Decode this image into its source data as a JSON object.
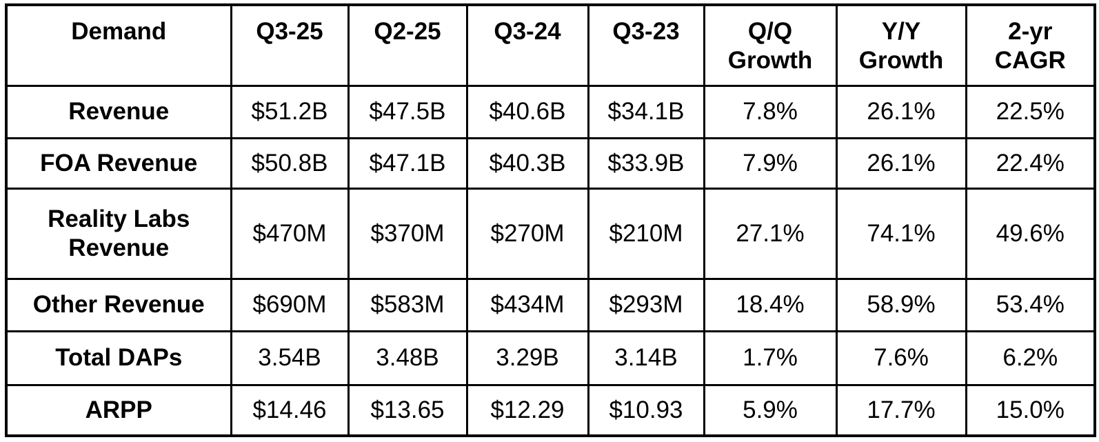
{
  "colors": {
    "border": "#000000",
    "text": "#000000",
    "background": "#ffffff"
  },
  "chart_data": {
    "type": "table",
    "columns": [
      "Demand",
      "Q3-25",
      "Q2-25",
      "Q3-24",
      "Q3-23",
      "Q/Q Growth",
      "Y/Y Growth",
      "2-yr CAGR"
    ],
    "rows": [
      {
        "label": "Revenue",
        "values": [
          "$51.2B",
          "$47.5B",
          "$40.6B",
          "$34.1B",
          "7.8%",
          "26.1%",
          "22.5%"
        ]
      },
      {
        "label": "FOA Revenue",
        "values": [
          "$50.8B",
          "$47.1B",
          "$40.3B",
          "$33.9B",
          "7.9%",
          "26.1%",
          "22.4%"
        ]
      },
      {
        "label": "Reality Labs Revenue",
        "values": [
          "$470M",
          "$370M",
          "$270M",
          "$210M",
          "27.1%",
          "74.1%",
          "49.6%"
        ]
      },
      {
        "label": "Other Revenue",
        "values": [
          "$690M",
          "$583M",
          "$434M",
          "$293M",
          "18.4%",
          "58.9%",
          "53.4%"
        ]
      },
      {
        "label": "Total DAPs",
        "values": [
          "3.54B",
          "3.48B",
          "3.29B",
          "3.14B",
          "1.7%",
          "7.6%",
          "6.2%"
        ]
      },
      {
        "label": "ARPP",
        "values": [
          "$14.46",
          "$13.65",
          "$12.29",
          "$10.93",
          "5.9%",
          "17.7%",
          "15.0%"
        ]
      }
    ]
  }
}
